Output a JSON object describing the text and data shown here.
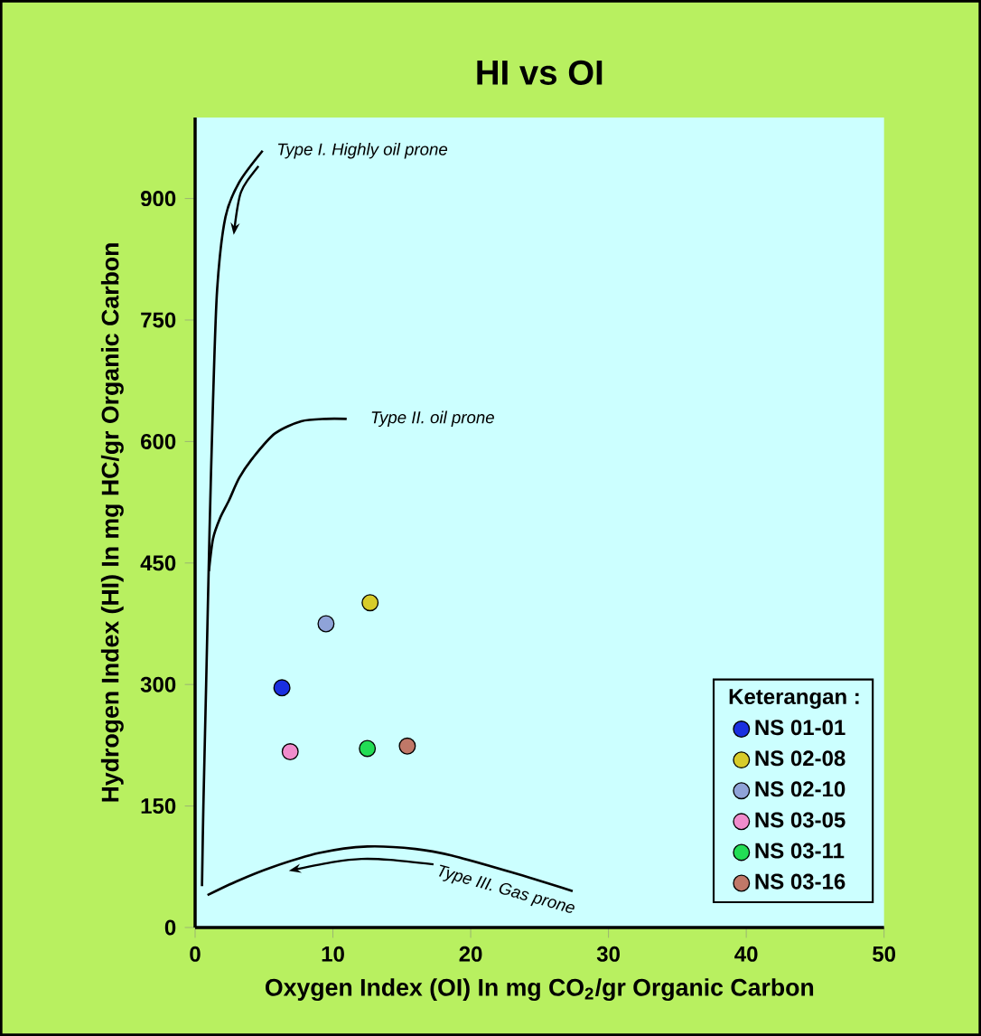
{
  "chart_data": {
    "type": "scatter",
    "title": "HI  vs  OI",
    "xlabel": "Oxygen Index (OI) In mg CO$_{2}$/gr Organic Carbon",
    "ylabel": "Hydrogen Index (HI) In mg HC/gr Organic Carbon",
    "legend_title": "Keterangan :",
    "xlim": [
      0,
      50
    ],
    "ylim": [
      0,
      1000
    ],
    "xticks": [
      0,
      10,
      20,
      30,
      40,
      50
    ],
    "yticks": [
      0,
      150,
      300,
      450,
      600,
      750,
      900
    ],
    "marker": "circle",
    "legend": "bottom right",
    "series": [
      {
        "name": "NS 01-01",
        "color": "#1a2fe0",
        "x": [
          6.3
        ],
        "values": [
          296
        ]
      },
      {
        "name": "NS 02-08",
        "color": "#d8cc2a",
        "x": [
          12.7
        ],
        "values": [
          401
        ]
      },
      {
        "name": "NS 02-10",
        "color": "#8fa3d8",
        "x": [
          9.5
        ],
        "values": [
          375
        ]
      },
      {
        "name": "NS 03-05",
        "color": "#f08ccc",
        "x": [
          6.9
        ],
        "values": [
          217
        ]
      },
      {
        "name": "NS 03-11",
        "color": "#22dd55",
        "x": [
          12.5
        ],
        "values": [
          221
        ]
      },
      {
        "name": "NS 03-16",
        "color": "#c07868",
        "x": [
          15.4
        ],
        "values": [
          224
        ]
      },
      {
        "name": "Type I. Highly oil prone",
        "type": "line",
        "marker": "none",
        "color": "#000000",
        "x": [
          4.9,
          3.2,
          2.2,
          1.6,
          1.3,
          1.05,
          0.8,
          0.6,
          0.5
        ],
        "values": [
          959,
          920,
          877,
          788,
          650,
          491,
          300,
          150,
          51
        ]
      },
      {
        "name": "Type II. oil prone",
        "type": "line",
        "marker": "none",
        "color": "#000000",
        "x": [
          11,
          9.5,
          7.7,
          5.8,
          4.2,
          3.2,
          2.45,
          1.8,
          1.3,
          1.0
        ],
        "values": [
          628,
          628,
          625,
          610,
          580,
          555,
          527,
          505,
          480,
          440
        ]
      },
      {
        "name": "Type III. Gas prone",
        "type": "line",
        "marker": "none",
        "color": "#000000",
        "x": [
          0.9,
          3,
          5.5,
          9,
          12.5,
          16,
          18.6,
          23,
          27.4
        ],
        "values": [
          40,
          57,
          74,
          92,
          100,
          97,
          89,
          68,
          45
        ]
      }
    ]
  }
}
